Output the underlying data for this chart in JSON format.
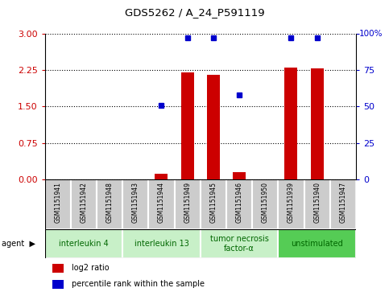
{
  "title": "GDS5262 / A_24_P591119",
  "samples": [
    "GSM1151941",
    "GSM1151942",
    "GSM1151948",
    "GSM1151943",
    "GSM1151944",
    "GSM1151949",
    "GSM1151945",
    "GSM1151946",
    "GSM1151950",
    "GSM1151939",
    "GSM1151940",
    "GSM1151947"
  ],
  "log2_ratio": [
    0,
    0,
    0,
    0,
    0.12,
    2.2,
    2.15,
    0.15,
    0,
    2.3,
    2.29,
    0
  ],
  "percentile_rank": [
    null,
    null,
    null,
    null,
    51,
    97,
    97,
    58,
    null,
    97,
    97,
    null
  ],
  "agents": [
    {
      "label": "interleukin 4",
      "start": 0,
      "end": 3,
      "color": "#c8f0c8",
      "text_color": "#006600"
    },
    {
      "label": "interleukin 13",
      "start": 3,
      "end": 6,
      "color": "#c8f0c8",
      "text_color": "#006600"
    },
    {
      "label": "tumor necrosis\nfactor-α",
      "start": 6,
      "end": 9,
      "color": "#c8f0c8",
      "text_color": "#006600"
    },
    {
      "label": "unstimulated",
      "start": 9,
      "end": 12,
      "color": "#55cc55",
      "text_color": "#006600"
    }
  ],
  "ylim_left": [
    0,
    3
  ],
  "ylim_right": [
    0,
    100
  ],
  "yticks_left": [
    0,
    0.75,
    1.5,
    2.25,
    3
  ],
  "yticks_right": [
    0,
    25,
    50,
    75,
    100
  ],
  "bar_color": "#cc0000",
  "dot_color": "#0000cc",
  "bar_width": 0.5,
  "legend_items": [
    "log2 ratio",
    "percentile rank within the sample"
  ],
  "sample_box_color": "#cccccc",
  "left_axis_color": "#cc0000",
  "right_axis_color": "#0000cc"
}
